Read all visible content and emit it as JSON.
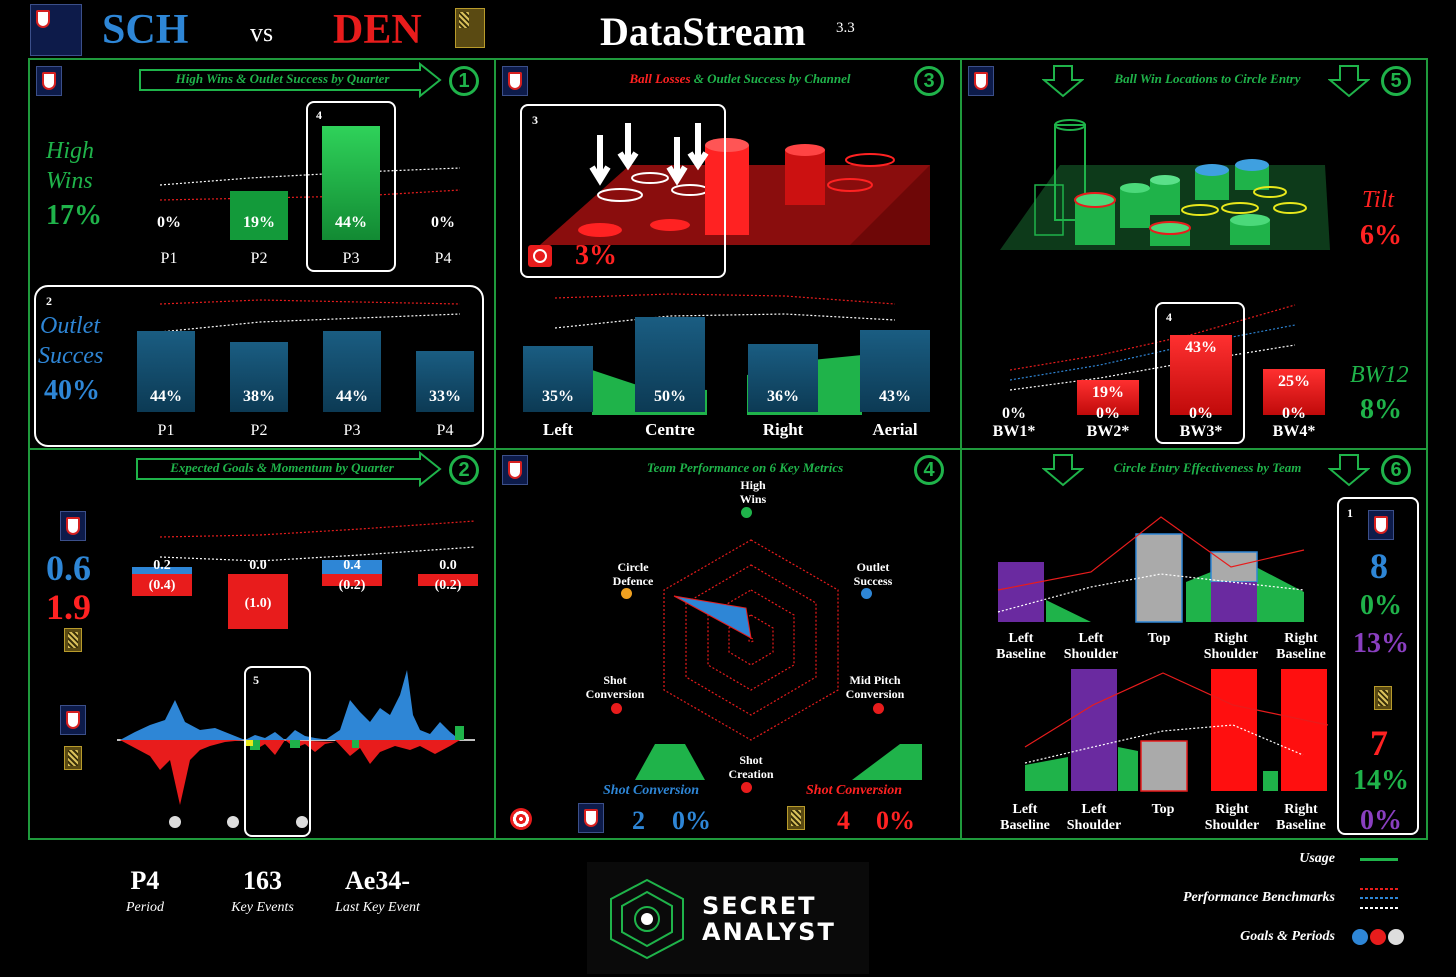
{
  "header": {
    "home_team": "SCH",
    "vs": "vs",
    "away_team": "DEN",
    "app_title": "DataStream",
    "version": "3.3"
  },
  "colors": {
    "green": "#1fb34a",
    "red": "#ff2222",
    "blue": "#2e86d6",
    "purple": "#8a3fc0",
    "teal": "#0f4d6e"
  },
  "panel1": {
    "number": "1",
    "title": "High Wins & Outlet Success by Quarter",
    "high_wins_label_1": "High",
    "high_wins_label_2": "Wins",
    "high_wins_value": "17%",
    "highlight_1": "4",
    "high_wins": [
      {
        "period": "P1",
        "value": "0%",
        "pct": 0
      },
      {
        "period": "P2",
        "value": "19%",
        "pct": 19
      },
      {
        "period": "P3",
        "value": "44%",
        "pct": 44
      },
      {
        "period": "P4",
        "value": "0%",
        "pct": 0
      }
    ],
    "highlight_2": "2",
    "outlet_label_1": "Outlet",
    "outlet_label_2": "Succes",
    "outlet_value": "40%",
    "outlet": [
      {
        "period": "P1",
        "value": "44%",
        "pct": 44
      },
      {
        "period": "P2",
        "value": "38%",
        "pct": 38
      },
      {
        "period": "P3",
        "value": "44%",
        "pct": 44
      },
      {
        "period": "P4",
        "value": "33%",
        "pct": 33
      }
    ]
  },
  "panel2": {
    "number": "2",
    "title": "Expected Goals & Momentum by Quarter",
    "home_xg": "0.6",
    "away_xg": "1.9",
    "quarters": [
      {
        "home": "0.2",
        "away": "(0.4)",
        "home_v": 0.2,
        "away_v": 0.4
      },
      {
        "home": "0.0",
        "away": "(1.0)",
        "home_v": 0.0,
        "away_v": 1.0
      },
      {
        "home": "0.4",
        "away": "(0.2)",
        "home_v": 0.4,
        "away_v": 0.2
      },
      {
        "home": "0.0",
        "away": "(0.2)",
        "home_v": 0.0,
        "away_v": 0.2
      }
    ],
    "highlight": "5"
  },
  "panel3": {
    "number": "3",
    "title_red": "Ball Losses",
    "title_rest": "& Outlet Success by Channel",
    "highlight": "3",
    "loss_value": "3%",
    "channels": [
      {
        "name": "Left",
        "value": "35%",
        "pct": 35
      },
      {
        "name": "Centre",
        "value": "50%",
        "pct": 50
      },
      {
        "name": "Right",
        "value": "36%",
        "pct": 36
      },
      {
        "name": "Aerial",
        "value": "43%",
        "pct": 43
      }
    ]
  },
  "panel4": {
    "number": "4",
    "title": "Team Performance on 6 Key Metrics",
    "metrics": [
      {
        "l1": "High",
        "l2": "Wins"
      },
      {
        "l1": "Outlet",
        "l2": "Success"
      },
      {
        "l1": "Mid Pitch",
        "l2": "Conversion"
      },
      {
        "l1": "Shot",
        "l2": "Creation"
      },
      {
        "l1": "Shot",
        "l2": "Conversion"
      },
      {
        "l1": "Circle",
        "l2": "Defence"
      }
    ],
    "home_shot_label": "Shot Conversion",
    "away_shot_label": "Shot Conversion",
    "home_shots": "2",
    "home_conv": "0%",
    "away_shots": "4",
    "away_conv": "0%"
  },
  "panel5": {
    "number": "5",
    "title": "Ball Win Locations to Circle Entry",
    "tilt_label": "Tilt",
    "tilt_value": "6%",
    "bw12_label": "BW12",
    "bw12_value": "8%",
    "highlight": "4",
    "zones": [
      {
        "name": "BW1*",
        "top": "",
        "bottom": "0%",
        "pct": 0
      },
      {
        "name": "BW2*",
        "top": "19%",
        "bottom": "0%",
        "pct": 19
      },
      {
        "name": "BW3*",
        "top": "43%",
        "bottom": "0%",
        "pct": 43
      },
      {
        "name": "BW4*",
        "top": "25%",
        "bottom": "0%",
        "pct": 25
      }
    ]
  },
  "panel6": {
    "number": "6",
    "title": "Circle Entry Effectiveness by Team",
    "top_labels": [
      {
        "l1": "Left",
        "l2": "Baseline"
      },
      {
        "l1": "Left",
        "l2": "Shoulder"
      },
      {
        "l1": "Top",
        "l2": ""
      },
      {
        "l1": "Right",
        "l2": "Shoulder"
      },
      {
        "l1": "Right",
        "l2": "Baseline"
      }
    ],
    "bottom_labels": [
      {
        "l1": "Left",
        "l2": "Baseline"
      },
      {
        "l1": "Left",
        "l2": "Shoulder"
      },
      {
        "l1": "Top",
        "l2": ""
      },
      {
        "l1": "Right",
        "l2": "Shoulder"
      },
      {
        "l1": "Right",
        "l2": "Baseline"
      }
    ],
    "highlight": "1",
    "home_entries": "8",
    "home_pct_1": "0%",
    "home_pct_2": "13%",
    "away_entries": "7",
    "away_pct_1": "14%",
    "away_pct_2": "0%"
  },
  "footer": {
    "period_value": "P4",
    "period_label": "Period",
    "events_value": "163",
    "events_label": "Key Events",
    "last_value": "Ae34-",
    "last_label": "Last Key Event",
    "brand_1": "SECRET",
    "brand_2": "ANALYST",
    "legend_usage": "Usage",
    "legend_bench": "Performance Benchmarks",
    "legend_goals": "Goals & Periods"
  }
}
